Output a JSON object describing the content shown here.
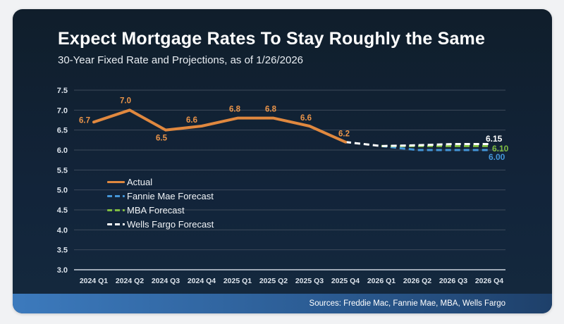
{
  "header": {
    "title": "Expect Mortgage Rates To Stay Roughly the Same",
    "subtitle": "30-Year Fixed Rate and Projections, as of 1/26/2026"
  },
  "footer": {
    "sources": "Sources: Freddie Mac, Fannie Mae, MBA, Wells Fargo"
  },
  "colors": {
    "card_bg_top": "#101e2b",
    "card_bg_bottom": "#14293e",
    "gridline": "#3d4a5a",
    "axis_line": "#cdd6df",
    "footer_bar_left": "#3c7abd",
    "footer_bar_right": "#1e406a"
  },
  "chart_data": {
    "type": "line",
    "title": "Expect Mortgage Rates To Stay Roughly the Same",
    "subtitle": "30-Year Fixed Rate and Projections, as of 1/26/2026",
    "xlabel": "",
    "ylabel": "",
    "ylim": [
      3.0,
      7.5
    ],
    "yticks": [
      "7.5",
      "7.0",
      "6.5",
      "6.0",
      "5.5",
      "5.0",
      "4.5",
      "4.0",
      "3.5",
      "3.0"
    ],
    "grid": true,
    "legend_position": "inside-left",
    "categories": [
      "2024 Q1",
      "2024 Q2",
      "2024 Q3",
      "2024 Q4",
      "2025 Q1",
      "2025 Q2",
      "2025 Q3",
      "2025 Q4",
      "2026 Q1",
      "2026 Q2",
      "2026 Q3",
      "2026 Q4"
    ],
    "series": [
      {
        "name": "Actual",
        "color": "#E0883F",
        "label_color": "#EA9449",
        "dash": "solid",
        "values": [
          6.7,
          7.0,
          6.5,
          6.6,
          6.8,
          6.8,
          6.6,
          6.2,
          null,
          null,
          null,
          null
        ],
        "point_labels": [
          "6.7",
          "7.0",
          "6.5",
          "6.6",
          "6.8",
          "6.8",
          "6.6",
          "6.2"
        ]
      },
      {
        "name": "Fannie Mae Forecast",
        "color": "#4496D8",
        "dash": "dashed",
        "values": [
          null,
          null,
          null,
          null,
          null,
          null,
          null,
          null,
          6.1,
          6.0,
          6.0,
          6.0
        ],
        "end_label": "6.00"
      },
      {
        "name": "MBA Forecast",
        "color": "#7FBC42",
        "dash": "dashed",
        "values": [
          null,
          null,
          null,
          null,
          null,
          null,
          null,
          null,
          6.1,
          6.1,
          6.1,
          6.1
        ],
        "end_label": "6.10"
      },
      {
        "name": "Wells Fargo Forecast",
        "color": "#FFFFFF",
        "dash": "dashed",
        "values": [
          null,
          null,
          null,
          null,
          null,
          null,
          null,
          6.2,
          6.1,
          6.12,
          6.15,
          6.15
        ],
        "end_label": "6.15"
      }
    ]
  }
}
